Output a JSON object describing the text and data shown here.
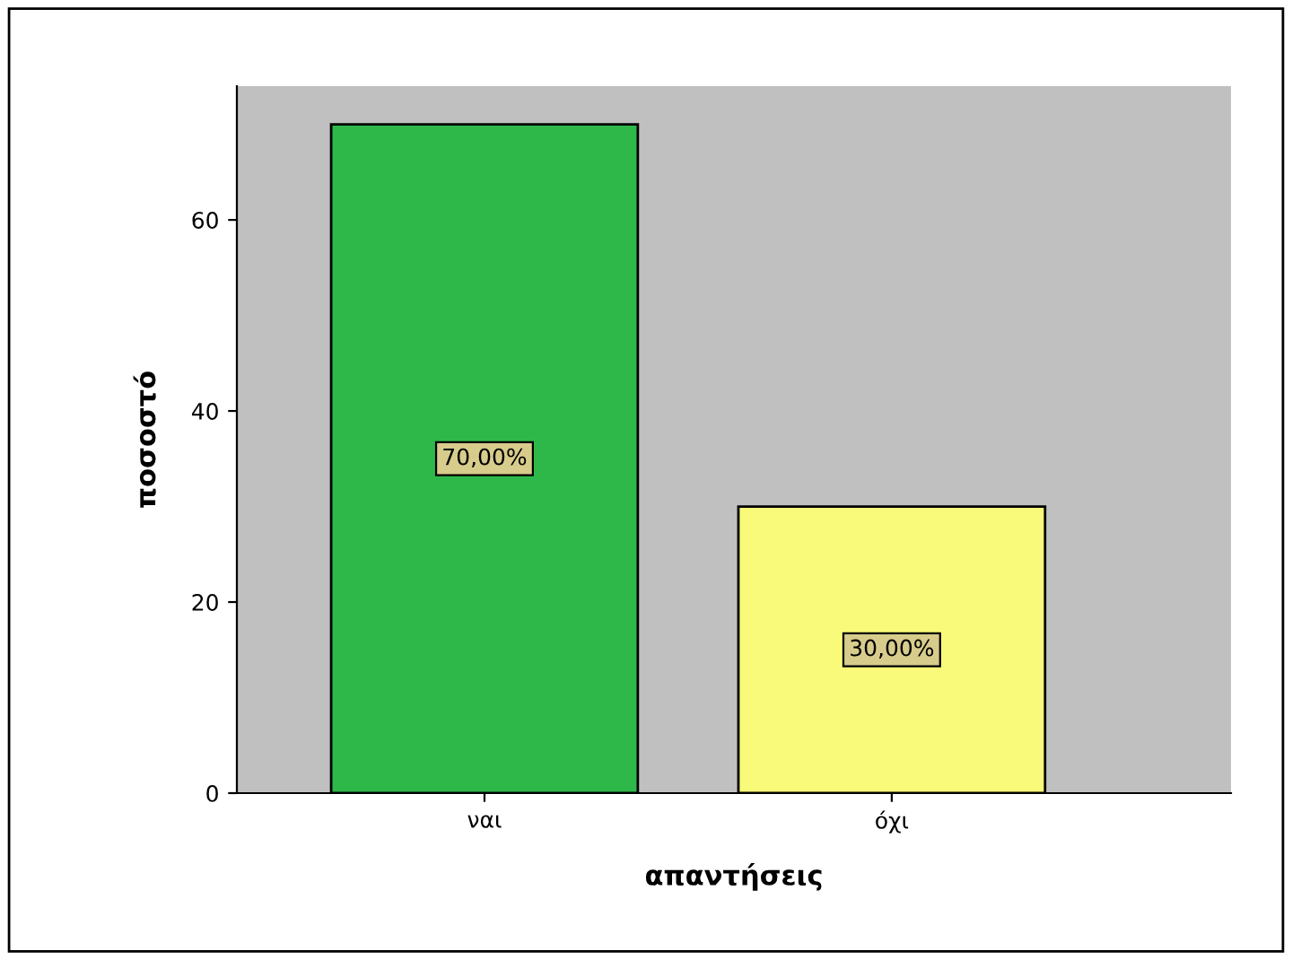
{
  "chart_data": {
    "type": "bar",
    "xlabel": "απαντήσεις",
    "ylabel": "ποσοστό",
    "categories": [
      "ναι",
      "όχι"
    ],
    "values": [
      70,
      30
    ],
    "colors": [
      "#2fb84a",
      "#fafa7a"
    ],
    "value_labels": [
      "70,00%",
      "30,00%"
    ],
    "ylim": [
      0,
      74
    ],
    "yticks": [
      0,
      20,
      40,
      60
    ],
    "grid": false
  }
}
